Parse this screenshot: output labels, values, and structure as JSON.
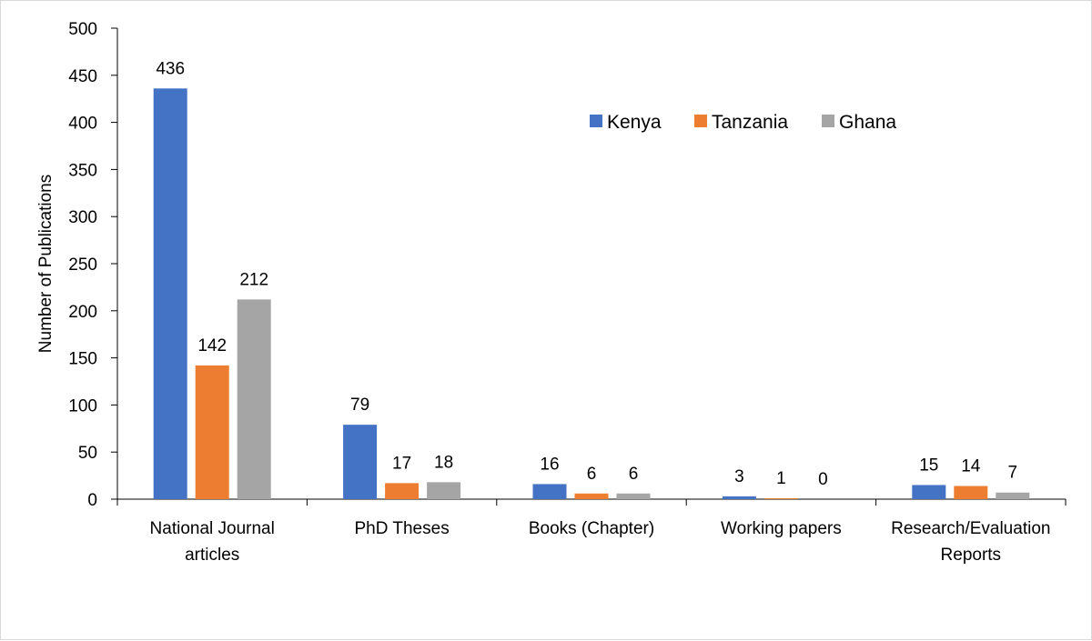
{
  "chart_data": {
    "type": "bar",
    "title": "",
    "xlabel": "",
    "ylabel": "Number of Publications",
    "ylim": [
      0,
      500
    ],
    "yticks": [
      0,
      50,
      100,
      150,
      200,
      250,
      300,
      350,
      400,
      450,
      500
    ],
    "grid": false,
    "legend_position": "top-right",
    "categories": [
      [
        "National Journal",
        "articles"
      ],
      [
        "PhD Theses"
      ],
      [
        "Books (Chapter)"
      ],
      [
        "Working papers"
      ],
      [
        "Research/Evaluation",
        "Reports"
      ]
    ],
    "series": [
      {
        "name": "Kenya",
        "color": "#4472c4",
        "values": [
          436,
          79,
          16,
          3,
          15
        ]
      },
      {
        "name": "Tanzania",
        "color": "#ed7d31",
        "values": [
          142,
          17,
          6,
          1,
          14
        ]
      },
      {
        "name": "Ghana",
        "color": "#a5a5a5",
        "values": [
          212,
          18,
          6,
          0,
          7
        ]
      }
    ]
  }
}
